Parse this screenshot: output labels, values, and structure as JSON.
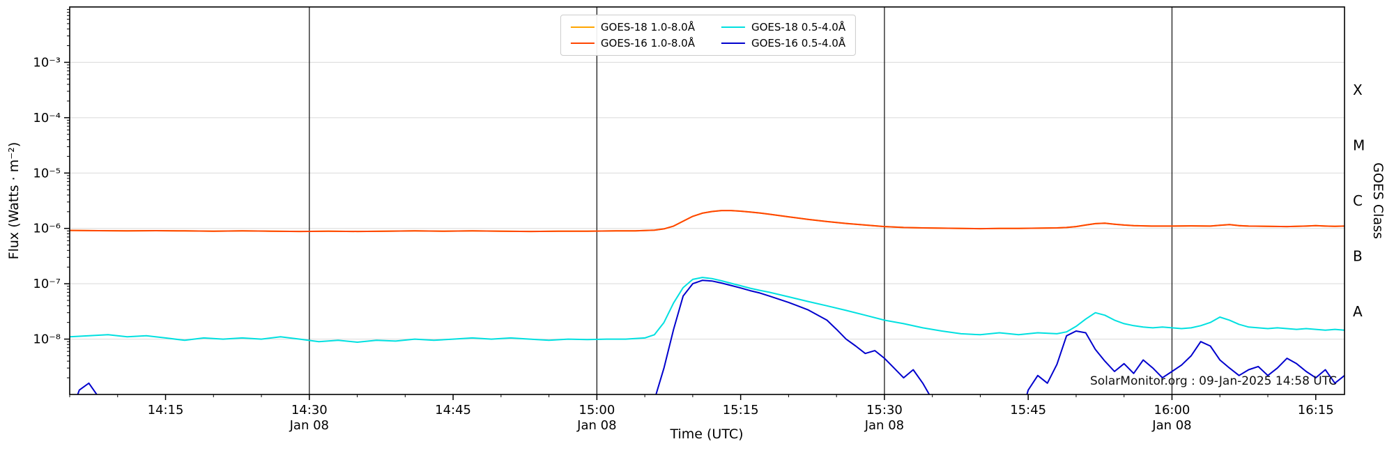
{
  "chart_data": {
    "type": "line",
    "title": "",
    "xlabel": "Time (UTC)",
    "ylabel": "Flux (Watts · m⁻²)",
    "ylabel_right": "GOES Class",
    "watermark": "SolarMonitor.org : 09-Jan-2025 14:58 UTC",
    "x_unit": "minutes after 14:00 UTC, 08-Jan-2025",
    "xlim": [
      5,
      138
    ],
    "ylim_log10": [
      -9,
      -2
    ],
    "grid_on": true,
    "grid_exponents": [
      -8,
      -7,
      -6,
      -5,
      -4,
      -3
    ],
    "date_lines_t": [
      30,
      60,
      90,
      120
    ],
    "xticks": [
      {
        "t": 15,
        "label": "14:15",
        "date": ""
      },
      {
        "t": 30,
        "label": "14:30",
        "date": "Jan 08"
      },
      {
        "t": 45,
        "label": "14:45",
        "date": ""
      },
      {
        "t": 60,
        "label": "15:00",
        "date": "Jan 08"
      },
      {
        "t": 75,
        "label": "15:15",
        "date": ""
      },
      {
        "t": 90,
        "label": "15:30",
        "date": "Jan 08"
      },
      {
        "t": 105,
        "label": "15:45",
        "date": ""
      },
      {
        "t": 120,
        "label": "16:00",
        "date": "Jan 08"
      },
      {
        "t": 135,
        "label": "16:15",
        "date": ""
      }
    ],
    "yticks": [
      {
        "exp": -3,
        "label": "10⁻³"
      },
      {
        "exp": -4,
        "label": "10⁻⁴"
      },
      {
        "exp": -5,
        "label": "10⁻⁵"
      },
      {
        "exp": -6,
        "label": "10⁻⁶"
      },
      {
        "exp": -7,
        "label": "10⁻⁷"
      },
      {
        "exp": -8,
        "label": "10⁻⁸"
      }
    ],
    "goes_classes": [
      {
        "label": "X",
        "log10_center": -3.5
      },
      {
        "label": "M",
        "log10_center": -4.5
      },
      {
        "label": "C",
        "log10_center": -5.5
      },
      {
        "label": "B",
        "log10_center": -6.5
      },
      {
        "label": "A",
        "log10_center": -7.5
      }
    ],
    "legend": [
      {
        "label": "GOES-18 1.0-8.0Å",
        "color": "#ffa500"
      },
      {
        "label": "GOES-16 1.0-8.0Å",
        "color": "#ff4500"
      },
      {
        "label": "GOES-18 0.5-4.0Å",
        "color": "#00e0e0"
      },
      {
        "label": "GOES-16 0.5-4.0Å",
        "color": "#0000cd"
      }
    ],
    "series": [
      {
        "name": "GOES-18 1.0-8.0Å",
        "color": "#ffa500",
        "x": [
          5,
          8,
          11,
          14,
          17,
          20,
          23,
          26,
          29,
          32,
          35,
          38,
          41,
          44,
          47,
          50,
          53,
          56,
          59,
          62,
          64,
          66,
          67,
          68,
          69,
          70,
          71,
          72,
          73,
          74,
          75,
          76,
          77,
          78,
          80,
          82,
          84,
          86,
          88,
          90,
          92,
          94,
          96,
          98,
          100,
          102,
          104,
          106,
          108,
          109,
          110,
          111,
          112,
          113,
          114,
          115,
          116,
          118,
          120,
          122,
          124,
          125,
          126,
          127,
          128,
          130,
          132,
          134,
          135,
          136,
          137,
          138
        ],
        "y": [
          9.2e-07,
          9.1e-07,
          9e-07,
          9.1e-07,
          9e-07,
          8.9e-07,
          9e-07,
          8.9e-07,
          8.8e-07,
          8.9e-07,
          8.8e-07,
          8.9e-07,
          9e-07,
          8.9e-07,
          9e-07,
          8.9e-07,
          8.8e-07,
          8.9e-07,
          8.9e-07,
          9e-07,
          9e-07,
          9.3e-07,
          9.8e-07,
          1.1e-06,
          1.35e-06,
          1.65e-06,
          1.88e-06,
          2.02e-06,
          2.1e-06,
          2.1e-06,
          2.05e-06,
          1.97e-06,
          1.9e-06,
          1.8e-06,
          1.62e-06,
          1.46e-06,
          1.33e-06,
          1.23e-06,
          1.15e-06,
          1.08e-06,
          1.04e-06,
          1.02e-06,
          1.01e-06,
          1e-06,
          9.9e-07,
          1e-06,
          1e-06,
          1.01e-06,
          1.02e-06,
          1.04e-06,
          1.08e-06,
          1.15e-06,
          1.22e-06,
          1.24e-06,
          1.19e-06,
          1.15e-06,
          1.12e-06,
          1.1e-06,
          1.1e-06,
          1.11e-06,
          1.1e-06,
          1.14e-06,
          1.17e-06,
          1.12e-06,
          1.1e-06,
          1.09e-06,
          1.08e-06,
          1.1e-06,
          1.12e-06,
          1.1e-06,
          1.09e-06,
          1.1e-06
        ]
      },
      {
        "name": "GOES-16 1.0-8.0Å",
        "color": "#ff4500",
        "x": [
          5,
          8,
          11,
          14,
          17,
          20,
          23,
          26,
          29,
          32,
          35,
          38,
          41,
          44,
          47,
          50,
          53,
          56,
          59,
          62,
          64,
          66,
          67,
          68,
          69,
          70,
          71,
          72,
          73,
          74,
          75,
          76,
          77,
          78,
          80,
          82,
          84,
          86,
          88,
          90,
          92,
          94,
          96,
          98,
          100,
          102,
          104,
          106,
          108,
          109,
          110,
          111,
          112,
          113,
          114,
          115,
          116,
          118,
          120,
          122,
          124,
          125,
          126,
          127,
          128,
          130,
          132,
          134,
          135,
          136,
          137,
          138
        ],
        "y": [
          9.2e-07,
          9.1e-07,
          9e-07,
          9.1e-07,
          9e-07,
          8.9e-07,
          9e-07,
          8.9e-07,
          8.8e-07,
          8.9e-07,
          8.8e-07,
          8.9e-07,
          9e-07,
          8.9e-07,
          9e-07,
          8.9e-07,
          8.8e-07,
          8.9e-07,
          8.9e-07,
          9e-07,
          9e-07,
          9.3e-07,
          9.8e-07,
          1.1e-06,
          1.35e-06,
          1.65e-06,
          1.88e-06,
          2.02e-06,
          2.1e-06,
          2.1e-06,
          2.05e-06,
          1.97e-06,
          1.9e-06,
          1.8e-06,
          1.62e-06,
          1.46e-06,
          1.33e-06,
          1.23e-06,
          1.15e-06,
          1.08e-06,
          1.04e-06,
          1.02e-06,
          1.01e-06,
          1e-06,
          9.9e-07,
          1e-06,
          1e-06,
          1.01e-06,
          1.02e-06,
          1.04e-06,
          1.08e-06,
          1.15e-06,
          1.22e-06,
          1.24e-06,
          1.19e-06,
          1.15e-06,
          1.12e-06,
          1.1e-06,
          1.1e-06,
          1.11e-06,
          1.1e-06,
          1.14e-06,
          1.17e-06,
          1.12e-06,
          1.1e-06,
          1.09e-06,
          1.08e-06,
          1.1e-06,
          1.12e-06,
          1.1e-06,
          1.09e-06,
          1.1e-06
        ]
      },
      {
        "name": "GOES-18 0.5-4.0Å",
        "color": "#00e0e0",
        "x": [
          5,
          7,
          9,
          11,
          13,
          15,
          17,
          19,
          21,
          23,
          25,
          27,
          29,
          31,
          33,
          35,
          37,
          39,
          41,
          43,
          45,
          47,
          49,
          51,
          53,
          55,
          57,
          59,
          61,
          63,
          65,
          66,
          67,
          68,
          69,
          70,
          71,
          72,
          73,
          74,
          75,
          76,
          77,
          78,
          80,
          82,
          84,
          86,
          88,
          90,
          92,
          94,
          96,
          98,
          100,
          102,
          104,
          106,
          108,
          109,
          110,
          111,
          112,
          113,
          114,
          115,
          116,
          117,
          118,
          119,
          120,
          121,
          122,
          123,
          124,
          125,
          126,
          127,
          128,
          129,
          130,
          131,
          132,
          133,
          134,
          135,
          136,
          137,
          138
        ],
        "y": [
          1.1e-08,
          1.15e-08,
          1.2e-08,
          1.1e-08,
          1.15e-08,
          1.05e-08,
          9.5e-09,
          1.05e-08,
          1e-08,
          1.05e-08,
          1e-08,
          1.1e-08,
          1e-08,
          9e-09,
          9.5e-09,
          8.8e-09,
          9.5e-09,
          9.2e-09,
          1e-08,
          9.5e-09,
          1e-08,
          1.05e-08,
          1e-08,
          1.05e-08,
          1e-08,
          9.5e-09,
          1e-08,
          9.8e-09,
          1e-08,
          1e-08,
          1.05e-08,
          1.2e-08,
          2e-08,
          4.5e-08,
          8.5e-08,
          1.2e-07,
          1.3e-07,
          1.24e-07,
          1.13e-07,
          1.02e-07,
          9.2e-08,
          8.3e-08,
          7.6e-08,
          7e-08,
          5.8e-08,
          4.8e-08,
          4e-08,
          3.3e-08,
          2.7e-08,
          2.2e-08,
          1.9e-08,
          1.6e-08,
          1.4e-08,
          1.25e-08,
          1.2e-08,
          1.3e-08,
          1.2e-08,
          1.3e-08,
          1.25e-08,
          1.35e-08,
          1.7e-08,
          2.3e-08,
          3e-08,
          2.7e-08,
          2.2e-08,
          1.9e-08,
          1.75e-08,
          1.65e-08,
          1.6e-08,
          1.65e-08,
          1.6e-08,
          1.55e-08,
          1.6e-08,
          1.75e-08,
          2e-08,
          2.5e-08,
          2.2e-08,
          1.85e-08,
          1.65e-08,
          1.6e-08,
          1.55e-08,
          1.6e-08,
          1.55e-08,
          1.5e-08,
          1.55e-08,
          1.5e-08,
          1.45e-08,
          1.5e-08,
          1.45e-08
        ]
      },
      {
        "name": "GOES-16 0.5-4.0Å",
        "color": "#0000cd",
        "x": [
          5,
          6,
          7,
          8,
          9,
          10,
          20,
          40,
          60,
          65,
          66,
          67,
          68,
          69,
          70,
          71,
          72,
          73,
          74,
          75,
          76,
          77,
          78,
          80,
          82,
          84,
          85,
          86,
          87,
          88,
          89,
          90,
          91,
          92,
          93,
          94,
          95,
          96,
          100,
          104,
          105,
          106,
          107,
          108,
          109,
          110,
          111,
          112,
          113,
          114,
          115,
          116,
          117,
          118,
          119,
          120,
          121,
          122,
          123,
          124,
          125,
          126,
          127,
          128,
          129,
          130,
          131,
          132,
          133,
          134,
          135,
          136,
          137,
          138
        ],
        "y": [
          4e-10,
          1.2e-09,
          1.6e-09,
          9e-10,
          4e-10,
          2e-10,
          1.5e-10,
          1.5e-10,
          2e-10,
          3e-10,
          8e-10,
          3e-09,
          1.5e-08,
          6e-08,
          1e-07,
          1.15e-07,
          1.12e-07,
          1.03e-07,
          9.3e-08,
          8.4e-08,
          7.5e-08,
          6.8e-08,
          6e-08,
          4.6e-08,
          3.4e-08,
          2.2e-08,
          1.5e-08,
          1e-08,
          7.5e-09,
          5.5e-09,
          6.2e-09,
          4.5e-09,
          3e-09,
          2e-09,
          2.8e-09,
          1.6e-09,
          8e-10,
          3e-10,
          2e-10,
          3e-10,
          1.2e-09,
          2.2e-09,
          1.6e-09,
          3.5e-09,
          1.15e-08,
          1.4e-08,
          1.3e-08,
          6.5e-09,
          4e-09,
          2.6e-09,
          3.6e-09,
          2.4e-09,
          4.2e-09,
          3e-09,
          2e-09,
          2.6e-09,
          3.4e-09,
          5e-09,
          9e-09,
          7.5e-09,
          4.2e-09,
          3e-09,
          2.2e-09,
          2.8e-09,
          3.2e-09,
          2.2e-09,
          3e-09,
          4.5e-09,
          3.6e-09,
          2.6e-09,
          2e-09,
          2.8e-09,
          1.6e-09,
          2.2e-09
        ]
      }
    ]
  }
}
